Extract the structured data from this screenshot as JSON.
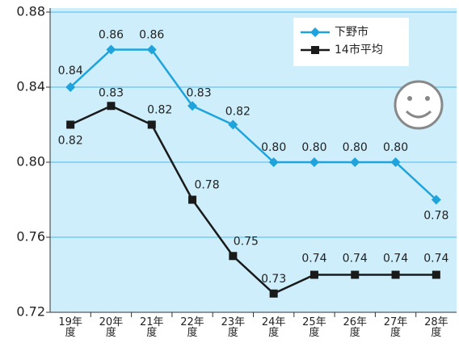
{
  "chart_data": {
    "type": "line",
    "categories": [
      "19年度",
      "20年度",
      "21年度",
      "22年度",
      "23年度",
      "24年度",
      "25年度",
      "26年度",
      "27年度",
      "28年度"
    ],
    "series": [
      {
        "name": "下野市",
        "color": "#1fa3dc",
        "marker": "diamond",
        "values": [
          0.84,
          0.86,
          0.86,
          0.83,
          0.82,
          0.8,
          0.8,
          0.8,
          0.8,
          0.78
        ],
        "value_labels": [
          "0.84",
          "0.86",
          "0.86",
          "0.83",
          "0.82",
          "0.80",
          "0.80",
          "0.80",
          "0.80",
          "0.78"
        ]
      },
      {
        "name": "14市平均",
        "color": "#1a1a1a",
        "marker": "square",
        "values": [
          0.82,
          0.83,
          0.82,
          0.78,
          0.75,
          0.73,
          0.74,
          0.74,
          0.74,
          0.74
        ],
        "value_labels": [
          "0.82",
          "0.83",
          "0.82",
          "0.78",
          "0.75",
          "0.73",
          "0.74",
          "0.74",
          "0.74",
          "0.74"
        ]
      }
    ],
    "ylim": [
      0.72,
      0.88
    ],
    "yticks": [
      0.72,
      0.76,
      {
        "value": 0.8,
        "label": "0.80"
      },
      0.84,
      0.88
    ],
    "grid": true,
    "legend": "upper right"
  }
}
